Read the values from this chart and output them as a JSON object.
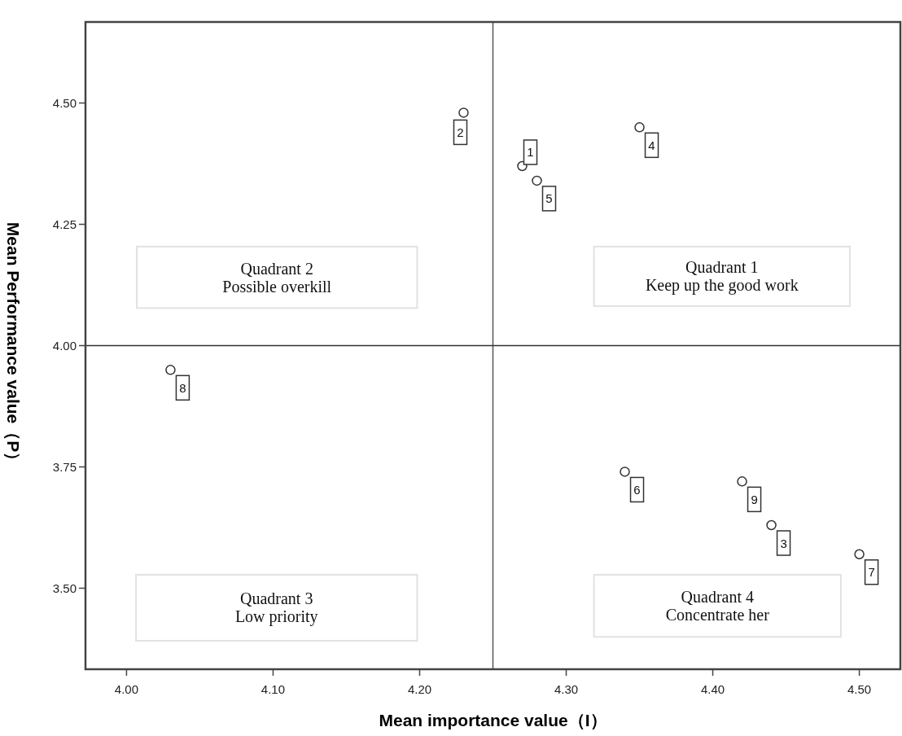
{
  "chart_data": {
    "type": "scatter",
    "xlabel": "Mean importance value（I）",
    "ylabel": "Mean Performance value（P）",
    "x": [
      4.27,
      4.23,
      4.44,
      4.35,
      4.28,
      4.34,
      4.5,
      4.03,
      4.42
    ],
    "values": [
      4.37,
      4.48,
      3.63,
      4.45,
      4.34,
      3.74,
      3.57,
      3.95,
      3.72
    ],
    "color": "#333333",
    "marker": "circle",
    "grid": false,
    "xlim": [
      3.972,
      4.528
    ],
    "xticks": [
      {
        "value": 4.0,
        "label": "4.00"
      },
      {
        "value": 4.1,
        "label": "4.10"
      },
      {
        "value": 4.2,
        "label": "4.20"
      },
      {
        "value": 4.3,
        "label": "4.30"
      },
      {
        "value": 4.4,
        "label": "4.40"
      },
      {
        "value": 4.5,
        "label": "4.50"
      }
    ],
    "ylim": [
      3.333,
      4.667
    ],
    "yticks": [
      {
        "value": 3.5,
        "label": "3.50"
      },
      {
        "value": 3.75,
        "label": "3.75"
      },
      {
        "value": 4.0,
        "label": "4.00"
      },
      {
        "value": 4.25,
        "label": "4.25"
      },
      {
        "value": 4.5,
        "label": "4.50"
      }
    ],
    "ref_lines": [
      {
        "axis": "x",
        "value": 4.25
      },
      {
        "axis": "y",
        "value": 4.0
      }
    ],
    "annotations": [
      {
        "text": "1",
        "x": 4.27,
        "y": 4.37
      },
      {
        "text": "2",
        "x": 4.23,
        "y": 4.48
      },
      {
        "text": "3",
        "x": 4.44,
        "y": 3.63
      },
      {
        "text": "4",
        "x": 4.35,
        "y": 4.45
      },
      {
        "text": "5",
        "x": 4.28,
        "y": 4.34
      },
      {
        "text": "6",
        "x": 4.34,
        "y": 3.74
      },
      {
        "text": "7",
        "x": 4.5,
        "y": 3.57
      },
      {
        "text": "8",
        "x": 4.03,
        "y": 3.95
      },
      {
        "text": "9",
        "x": 4.42,
        "y": 3.72
      },
      "Quadrant 2\nPossible overkill",
      "Quadrant 1\nKeep up the good work",
      "Quadrant 3\nLow priority",
      "Quadrant 4\nConcentrate her"
    ]
  }
}
